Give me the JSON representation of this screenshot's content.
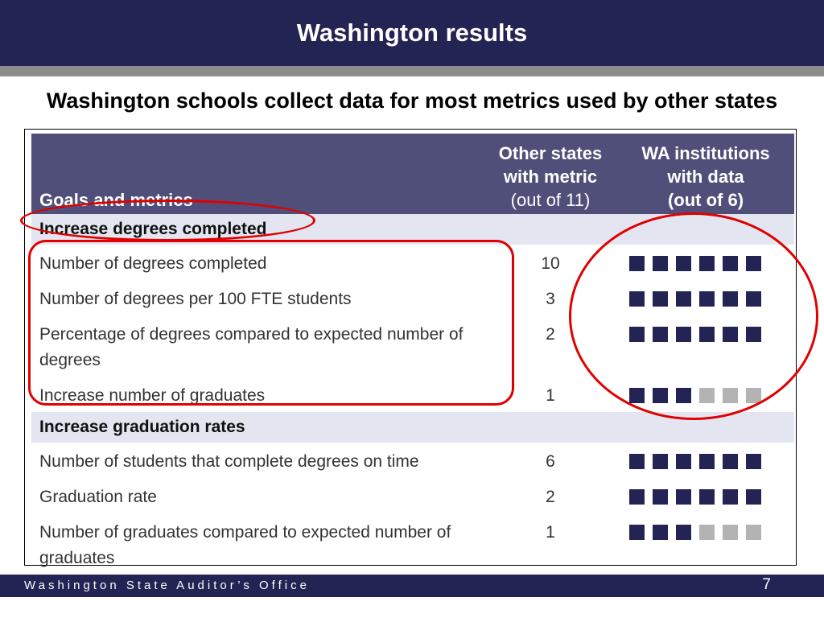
{
  "header": {
    "title": "Washington results"
  },
  "subtitle": "Washington schools collect data for most metrics used by other states",
  "table": {
    "col_goals": "Goals and metrics",
    "col_other_l1": "Other states",
    "col_other_l2": "with metric",
    "col_other_l3": "(out of 11)",
    "col_wa_l1": "WA institutions",
    "col_wa_l2": "with data",
    "col_wa_l3": "(out of 6)",
    "sections": [
      {
        "name": "Increase degrees completed",
        "rows": [
          {
            "metric": "Number of degrees completed",
            "count": "10",
            "wa_with_data": 6
          },
          {
            "metric": "Number of degrees per 100 FTE students",
            "count": "3",
            "wa_with_data": 6
          },
          {
            "metric": "Percentage of degrees compared to expected number of degrees",
            "count": "2",
            "wa_with_data": 6
          },
          {
            "metric": "Increase number of graduates",
            "count": "1",
            "wa_with_data": 3
          }
        ]
      },
      {
        "name": "Increase graduation rates",
        "rows": [
          {
            "metric": "Number of students that complete degrees on time",
            "count": "6",
            "wa_with_data": 6
          },
          {
            "metric": "Graduation rate",
            "count": "2",
            "wa_with_data": 6
          },
          {
            "metric": "Number of graduates compared to expected number of graduates",
            "count": "1",
            "wa_with_data": 3
          }
        ]
      }
    ],
    "wa_total": 6
  },
  "colors": {
    "navy": "#232354",
    "header_bg": "#4f4f7a",
    "section_bg": "#e3e6f1",
    "inactive_square": "#b3b3b3",
    "annotation": "#e00000"
  },
  "footer": {
    "org": "Washington State Auditor’s Office",
    "page": "7"
  }
}
